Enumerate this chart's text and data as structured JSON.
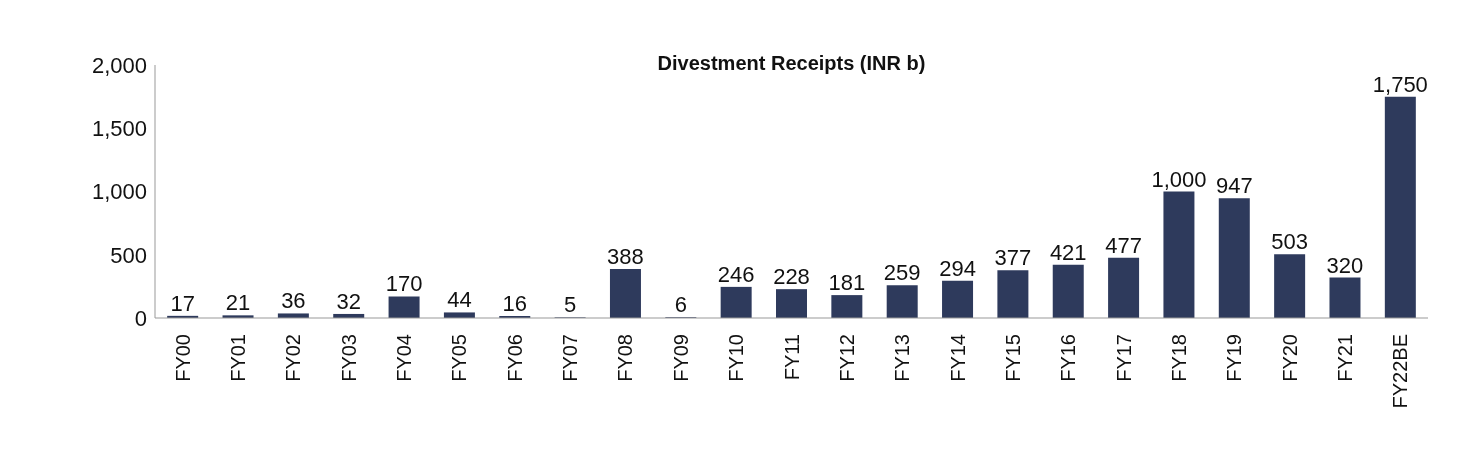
{
  "chart_data": {
    "type": "bar",
    "title": "Divestment Receipts (INR b)",
    "categories": [
      "FY00",
      "FY01",
      "FY02",
      "FY03",
      "FY04",
      "FY05",
      "FY06",
      "FY07",
      "FY08",
      "FY09",
      "FY10",
      "FY11",
      "FY12",
      "FY13",
      "FY14",
      "FY15",
      "FY16",
      "FY17",
      "FY18",
      "FY19",
      "FY20",
      "FY21",
      "FY22BE"
    ],
    "values": [
      17,
      21,
      36,
      32,
      170,
      44,
      16,
      5,
      388,
      6,
      246,
      228,
      181,
      259,
      294,
      377,
      421,
      477,
      1000,
      947,
      503,
      320,
      1750
    ],
    "color": "#2e3a5c",
    "ylim": [
      0,
      2000
    ],
    "yticks": [
      {
        "value": 0,
        "label": "0"
      },
      {
        "value": 500,
        "label": "500"
      },
      {
        "value": 1000,
        "label": "1,000"
      },
      {
        "value": 1500,
        "label": "1,500"
      },
      {
        "value": 2000,
        "label": "2,000"
      }
    ],
    "value_labels": [
      "17",
      "21",
      "36",
      "32",
      "170",
      "44",
      "16",
      "5",
      "388",
      "6",
      "246",
      "228",
      "181",
      "259",
      "294",
      "377",
      "421",
      "477",
      "1,000",
      "947",
      "503",
      "320",
      "1,750"
    ],
    "grid": false,
    "legend": false
  }
}
